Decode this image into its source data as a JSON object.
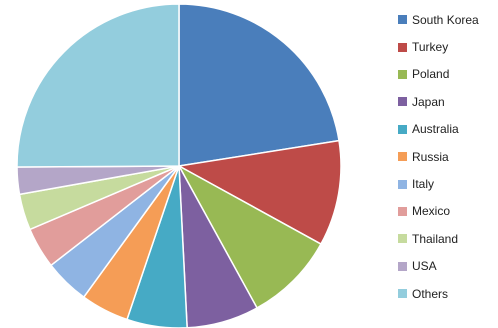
{
  "chart_data": {
    "type": "pie",
    "title": "",
    "legend_position": "right",
    "series": [
      {
        "name": "South Korea",
        "value": 22.5,
        "color": "#4A7EBB"
      },
      {
        "name": "Turkey",
        "value": 10.5,
        "color": "#BE4B48"
      },
      {
        "name": "Poland",
        "value": 9.0,
        "color": "#98B954"
      },
      {
        "name": "Japan",
        "value": 7.2,
        "color": "#7D60A0"
      },
      {
        "name": "Australia",
        "value": 6.0,
        "color": "#46AAC5"
      },
      {
        "name": "Russia",
        "value": 4.8,
        "color": "#F59D56"
      },
      {
        "name": "Italy",
        "value": 4.5,
        "color": "#8FB4E3"
      },
      {
        "name": "Mexico",
        "value": 4.1,
        "color": "#E19D9B"
      },
      {
        "name": "Thailand",
        "value": 3.6,
        "color": "#C6DB9E"
      },
      {
        "name": "USA",
        "value": 2.7,
        "color": "#B4A6C8"
      },
      {
        "name": "Others",
        "value": 25.1,
        "color": "#93CDDD"
      }
    ]
  }
}
